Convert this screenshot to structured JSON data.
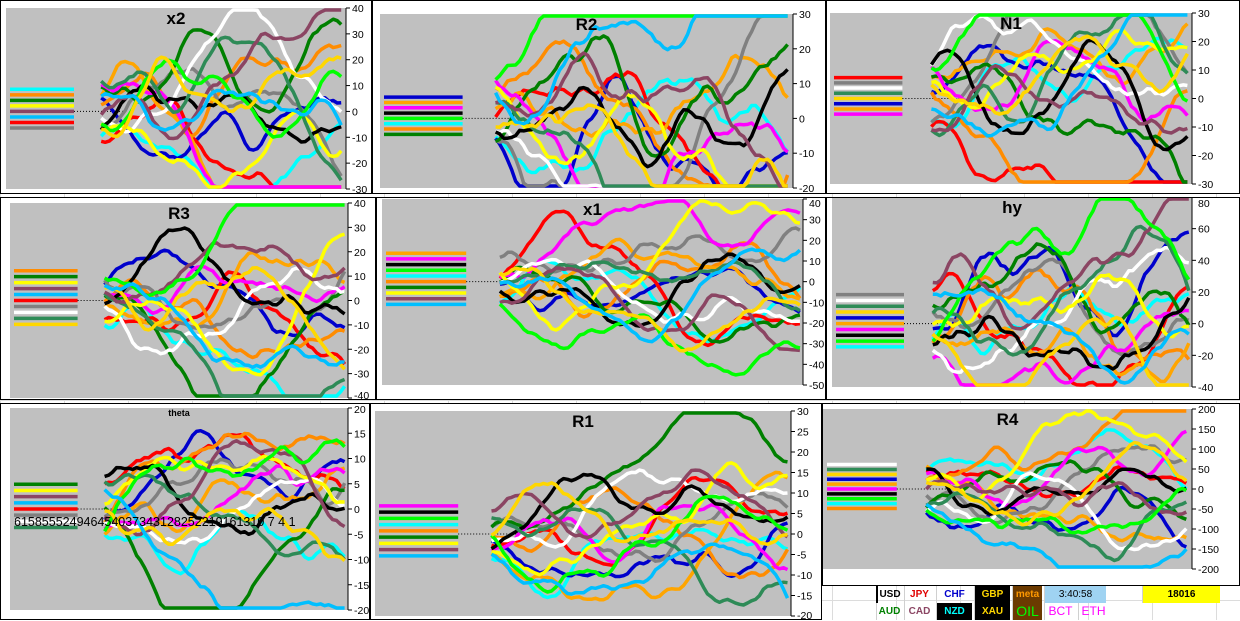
{
  "chart_data": [
    {
      "type": "line",
      "title": "x2",
      "yticks": [
        "40",
        "30",
        "20",
        "10",
        "0",
        "-10",
        "-20",
        "-30"
      ],
      "ylim": [
        -30,
        40
      ],
      "plot": [
        5,
        7,
        345,
        188
      ]
    },
    {
      "type": "line",
      "title": "R2",
      "yticks": [
        "30",
        "20",
        "10",
        "0",
        "-10",
        "-20"
      ],
      "ylim": [
        -20,
        30
      ],
      "plot": [
        379,
        13,
        792,
        187
      ]
    },
    {
      "type": "line",
      "title": "N1",
      "yticks": [
        "30",
        "20",
        "10",
        "0",
        "-10",
        "-20",
        "-30"
      ],
      "ylim": [
        -30,
        30
      ],
      "plot": [
        829,
        12,
        1191,
        183
      ]
    },
    {
      "type": "line",
      "title": "R3",
      "yticks": [
        "40",
        "30",
        "20",
        "10",
        "0",
        "-10",
        "-20",
        "-30",
        "-40"
      ],
      "ylim": [
        -40,
        40
      ],
      "plot": [
        9,
        202,
        347,
        397
      ]
    },
    {
      "type": "line",
      "title": "x1",
      "yticks": [
        "40",
        "30",
        "20",
        "10",
        "0",
        "-10",
        "-20",
        "-30",
        "-40",
        "-50"
      ],
      "ylim": [
        -50,
        40
      ],
      "plot": [
        381,
        198,
        802,
        384
      ]
    },
    {
      "type": "line",
      "title": "hy",
      "yticks": [
        "80",
        "60",
        "40",
        "20",
        "0",
        "-20",
        "-40"
      ],
      "ylim": [
        -40,
        80
      ],
      "plot": [
        831,
        196,
        1191,
        386
      ]
    },
    {
      "type": "line",
      "title": "theta",
      "yticks": [
        "20",
        "15",
        "10",
        "5",
        "0",
        "-5",
        "-10",
        "-15",
        "-20"
      ],
      "ylim": [
        -20,
        20
      ],
      "plot": [
        9,
        407,
        347,
        609
      ],
      "overlay_text": "615855524946454037343128252219161310 7 4 1"
    },
    {
      "type": "line",
      "title": "R1",
      "yticks": [
        "30",
        "25",
        "20",
        "15",
        "10",
        "5",
        "0",
        "-5",
        "-10",
        "-15",
        "-20"
      ],
      "ylim": [
        -20,
        30
      ],
      "plot": [
        374,
        410,
        790,
        615
      ]
    },
    {
      "type": "line",
      "title": "R4",
      "yticks": [
        "200",
        "150",
        "100",
        "50",
        "0",
        "-50",
        "-100",
        "-150",
        "-200"
      ],
      "ylim": [
        -200,
        200
      ],
      "plot": [
        822,
        408,
        1191,
        568
      ]
    }
  ],
  "legend": {
    "row1": [
      "USD",
      "JPY",
      "CHF",
      "GBP",
      "meta",
      "3:40:58",
      "18016"
    ],
    "row2": [
      "AUD",
      "CAD",
      "NZD",
      "XAU",
      "OIL",
      "BCT",
      "ETH"
    ]
  },
  "colors": {
    "plot_bg": "#c0c0c0",
    "series": [
      "#00ffff",
      "#0000cc",
      "#ff0000",
      "#ff8c00",
      "#ffa500",
      "#808080",
      "#008000",
      "#ff00ff",
      "#ffffff",
      "#ffff00",
      "#000000",
      "#2e8b57",
      "#8b4563",
      "#00ff00",
      "#ffd700",
      "#00bfff"
    ],
    "USD": "#000000",
    "JPY": "#ff0000",
    "CHF": "#0000cc",
    "GBP": "#000000",
    "meta": "#ff8c00",
    "AUD": "#008000",
    "CAD": "#8b4563",
    "NZD": "#00ffff",
    "XAU": "#000000",
    "OIL": "#00ff00",
    "BCT": "#ff00ff",
    "ETH": "#ff00ff"
  }
}
